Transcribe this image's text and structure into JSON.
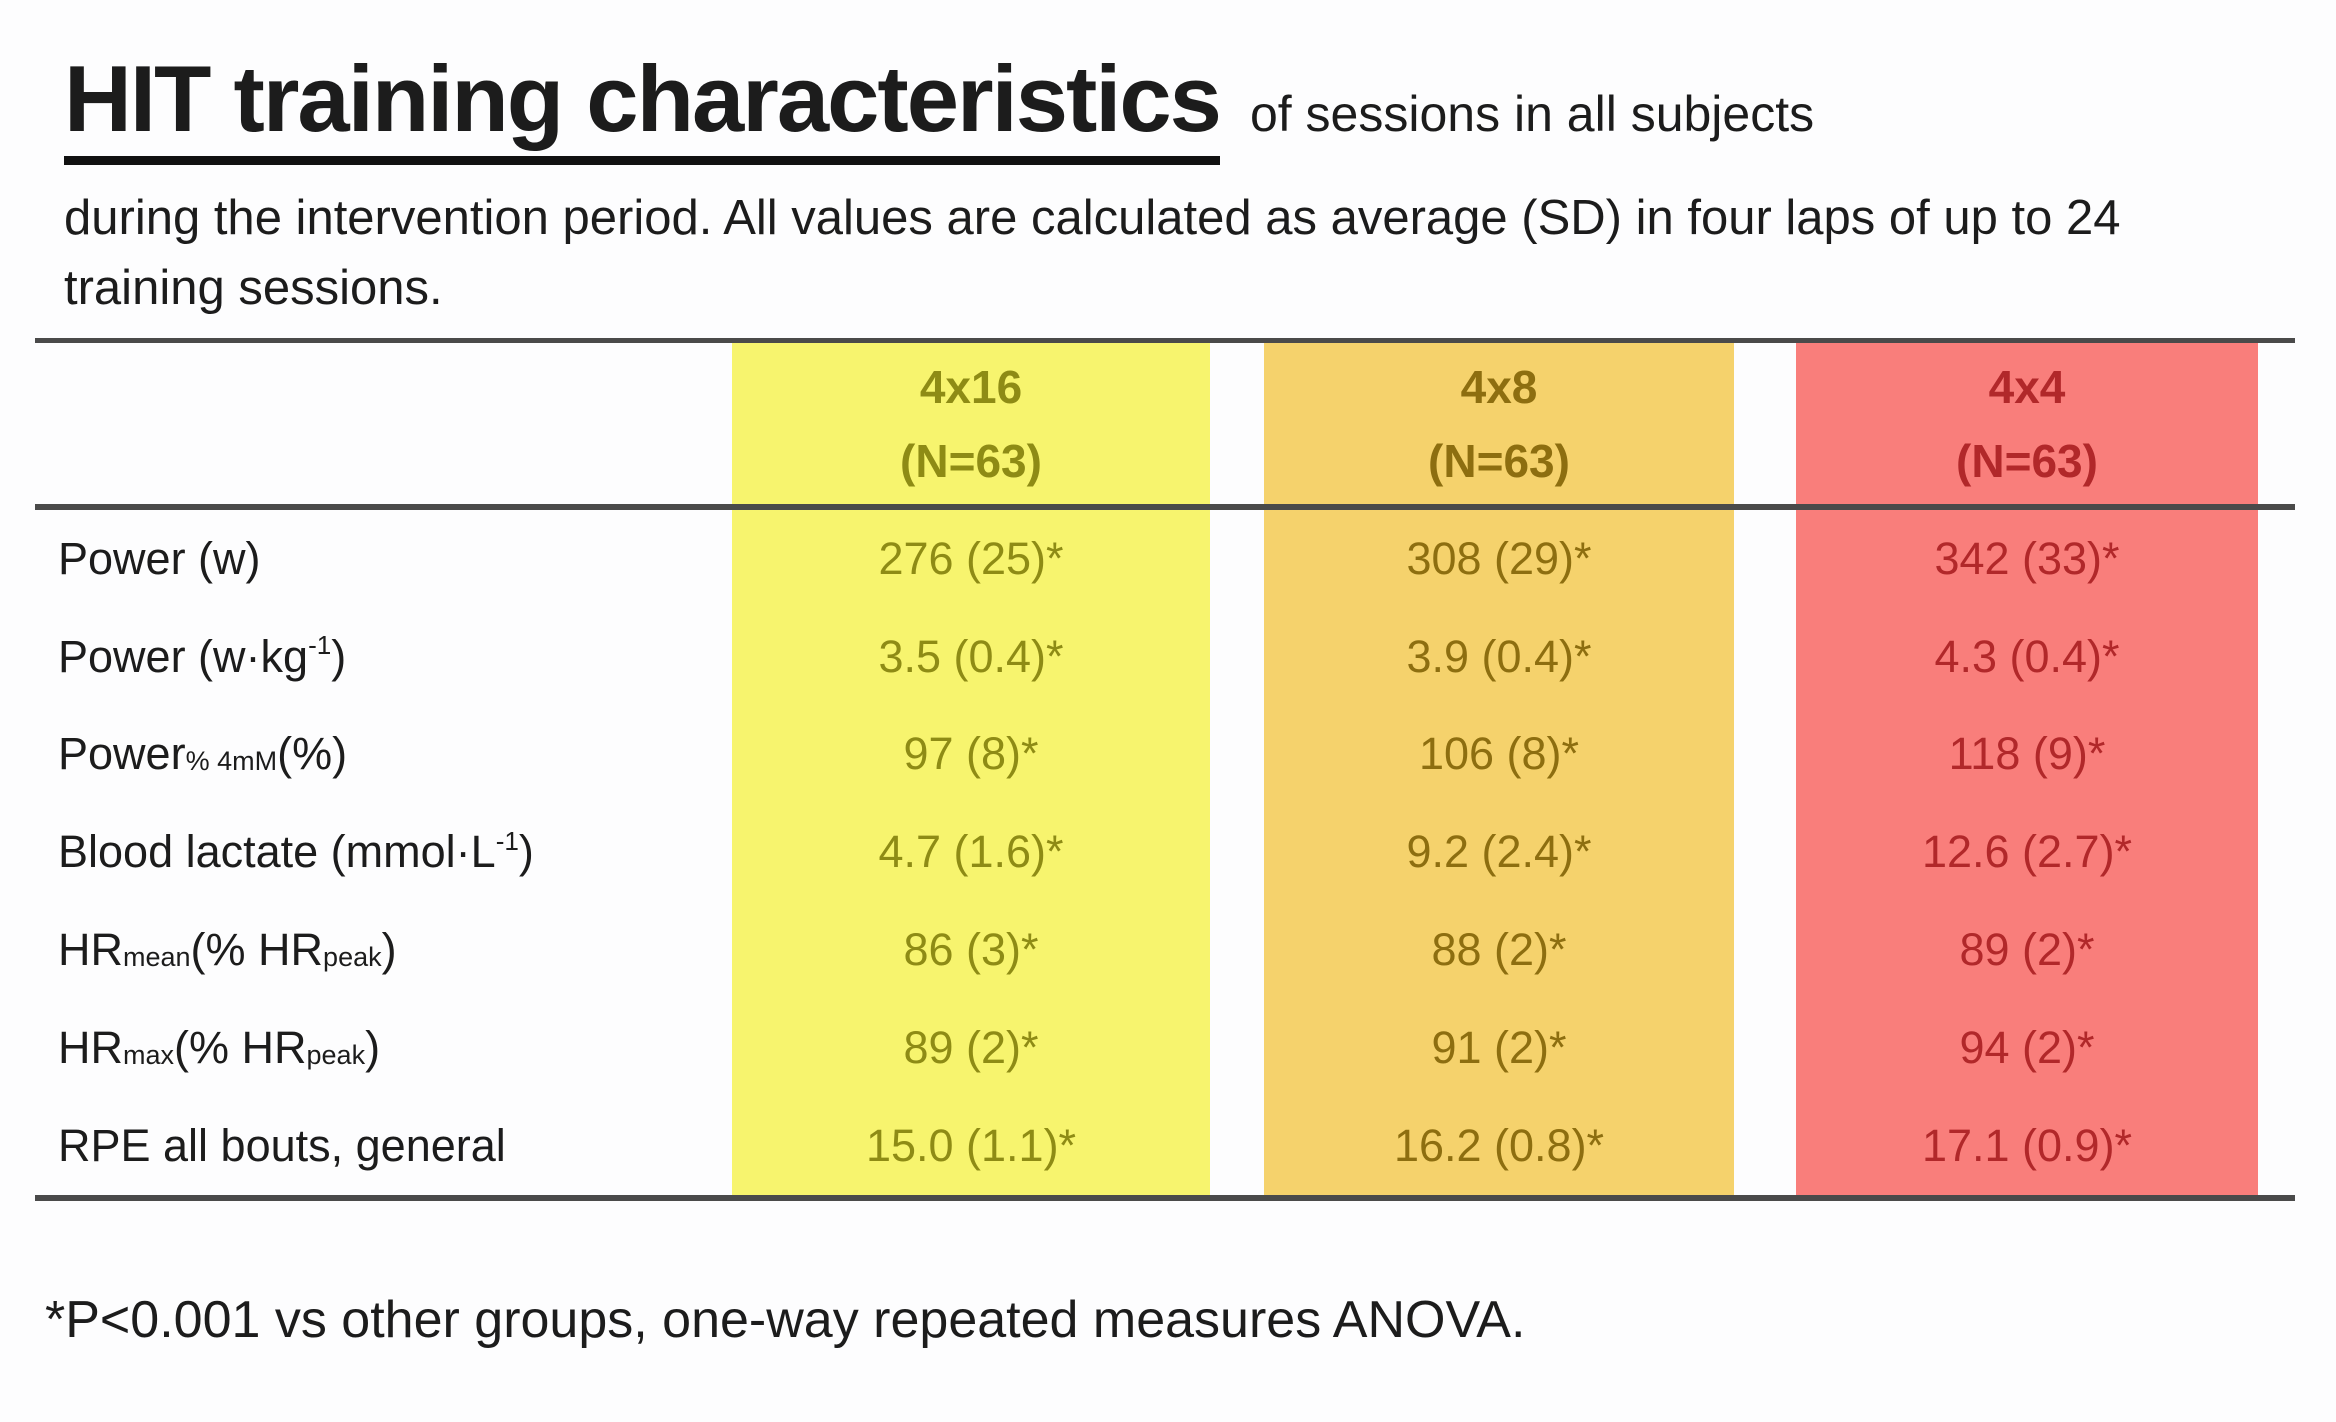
{
  "page": {
    "title": "HIT training characteristics",
    "title_suffix": "of sessions in all subjects",
    "subtitle": "during the intervention period. All values are calculated as average (SD) in four laps of up to 24 training sessions.",
    "footnote": "*P<0.001 vs other groups, one-way repeated measures ANOVA."
  },
  "colors": {
    "background": "#fdfdfe",
    "text": "#1c1c1c",
    "rule_line": "#4a4a4a",
    "columns": [
      {
        "bg": "#f7f46e",
        "fg": "#8e8b15"
      },
      {
        "bg": "#f5d26c",
        "fg": "#8d6e10"
      },
      {
        "bg": "#f97e7b",
        "fg": "#b1282a"
      }
    ]
  },
  "table": {
    "columns": [
      {
        "id": "4x16",
        "label": "4x16",
        "n": "(N=63)"
      },
      {
        "id": "4x8",
        "label": "4x8",
        "n": "(N=63)"
      },
      {
        "id": "4x4",
        "label": "4x4",
        "n": "(N=63)"
      }
    ],
    "rows": [
      {
        "label_segments": [
          {
            "t": "Power (w)"
          }
        ],
        "values": [
          "276 (25)*",
          "308 (29)*",
          "342 (33)*"
        ]
      },
      {
        "label_segments": [
          {
            "t": "Power (w·kg"
          },
          {
            "sup": "-1"
          },
          {
            "t": ")"
          }
        ],
        "values": [
          "3.5 (0.4)*",
          "3.9 (0.4)*",
          "4.3 (0.4)*"
        ]
      },
      {
        "label_segments": [
          {
            "t": "Power "
          },
          {
            "sub": "% 4mM"
          },
          {
            "t": " (%)"
          }
        ],
        "values": [
          "97 (8)*",
          "106 (8)*",
          "118 (9)*"
        ]
      },
      {
        "label_segments": [
          {
            "t": "Blood lactate (mmol·L"
          },
          {
            "sup": "-1"
          },
          {
            "t": ")"
          }
        ],
        "values": [
          "4.7 (1.6)*",
          "9.2 (2.4)*",
          "12.6 (2.7)*"
        ]
      },
      {
        "label_segments": [
          {
            "t": "HR"
          },
          {
            "sub": "mean"
          },
          {
            "t": " (% HR"
          },
          {
            "sub": "peak"
          },
          {
            "t": ")"
          }
        ],
        "values": [
          "86 (3)*",
          "88 (2)*",
          "89 (2)*"
        ]
      },
      {
        "label_segments": [
          {
            "t": "HR"
          },
          {
            "sub": "max"
          },
          {
            "t": " (% HR"
          },
          {
            "sub": "peak"
          },
          {
            "t": ")"
          }
        ],
        "values": [
          "89 (2)*",
          "91 (2)*",
          "94 (2)*"
        ]
      },
      {
        "label_segments": [
          {
            "t": "RPE all bouts, general"
          }
        ],
        "values": [
          "15.0 (1.1)*",
          "16.2 (0.8)*",
          "17.1 (0.9)*"
        ]
      }
    ]
  }
}
